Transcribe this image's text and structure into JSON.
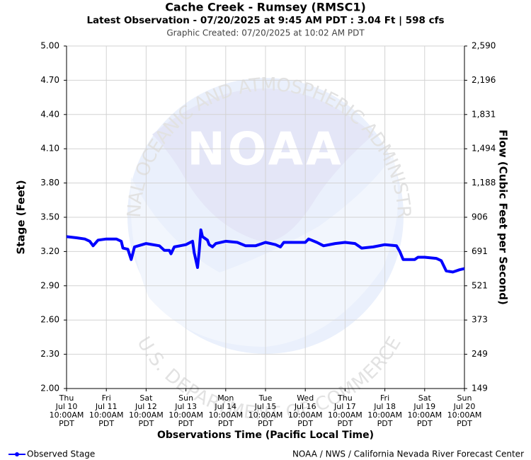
{
  "chart_data": {
    "type": "line",
    "title": "Cache Creek - Rumsey (RMSC1)",
    "subtitle": "Latest Observation - 07/20/2025 at 9:45 AM PDT : 3.04 Ft | 598 cfs",
    "created": "Graphic Created: 07/20/2025 at 10:02 AM PDT",
    "xlabel": "Observations Time (Pacific Local Time)",
    "ylabel": "Stage (Feet)",
    "y2label": "Flow (Cubic Feet per Second)",
    "credit": "NOAA / NWS / California Nevada River Forecast Center",
    "watermark": {
      "logo": "NOAA",
      "top": "NATIONAL OCEANIC AND ATMOSPHERIC ADMINISTRATION",
      "bottom": "U.S. DEPARTMENT OF COMMERCE"
    },
    "grid": true,
    "legend": "bottom-left",
    "xlim": [
      "Jul 10 10:00AM",
      "Jul 20 10:00AM"
    ],
    "xticks": [
      {
        "value": "Jul 10 10:00AM",
        "label": [
          "Thu",
          "Jul 10",
          "10:00AM",
          "PDT"
        ]
      },
      {
        "value": "Jul 11 10:00AM",
        "label": [
          "Fri",
          "Jul 11",
          "10:00AM",
          "PDT"
        ]
      },
      {
        "value": "Jul 12 10:00AM",
        "label": [
          "Sat",
          "Jul 12",
          "10:00AM",
          "PDT"
        ]
      },
      {
        "value": "Jul 13 10:00AM",
        "label": [
          "Sun",
          "Jul 13",
          "10:00AM",
          "PDT"
        ]
      },
      {
        "value": "Jul 14 10:00AM",
        "label": [
          "Mon",
          "Jul 14",
          "10:00AM",
          "PDT"
        ]
      },
      {
        "value": "Jul 15 10:00AM",
        "label": [
          "Tue",
          "Jul 15",
          "10:00AM",
          "PDT"
        ]
      },
      {
        "value": "Jul 16 10:00AM",
        "label": [
          "Wed",
          "Jul 16",
          "10:00AM",
          "PDT"
        ]
      },
      {
        "value": "Jul 17 10:00AM",
        "label": [
          "Thu",
          "Jul 17",
          "10:00AM",
          "PDT"
        ]
      },
      {
        "value": "Jul 18 10:00AM",
        "label": [
          "Fri",
          "Jul 18",
          "10:00AM",
          "PDT"
        ]
      },
      {
        "value": "Jul 19 10:00AM",
        "label": [
          "Sat",
          "Jul 19",
          "10:00AM",
          "PDT"
        ]
      },
      {
        "value": "Jul 20 10:00AM",
        "label": [
          "Sun",
          "Jul 20",
          "10:00AM",
          "PDT"
        ]
      }
    ],
    "ylim": [
      2.0,
      5.0
    ],
    "yticks": [
      {
        "value": 2.0,
        "label": "2.00"
      },
      {
        "value": 2.3,
        "label": "2.30"
      },
      {
        "value": 2.6,
        "label": "2.60"
      },
      {
        "value": 2.9,
        "label": "2.90"
      },
      {
        "value": 3.2,
        "label": "3.20"
      },
      {
        "value": 3.5,
        "label": "3.50"
      },
      {
        "value": 3.8,
        "label": "3.80"
      },
      {
        "value": 4.1,
        "label": "4.10"
      },
      {
        "value": 4.4,
        "label": "4.40"
      },
      {
        "value": 4.7,
        "label": "4.70"
      },
      {
        "value": 5.0,
        "label": "5.00"
      }
    ],
    "y2lim": [
      149,
      2590
    ],
    "y2ticks": [
      149,
      249,
      373,
      521,
      691,
      906,
      {
        "value": 1188,
        "label": "1,188"
      },
      {
        "value": 1494,
        "label": "1,494"
      },
      {
        "value": 1831,
        "label": "1,831"
      },
      {
        "value": 2196,
        "label": "2,196"
      },
      {
        "value": 2590,
        "label": "2,590"
      }
    ],
    "x": [
      "Jul 10 10:00AM",
      "Jul 10 4:00PM",
      "Jul 10 9:00PM",
      "Jul 11 12:00AM",
      "Jul 11 2:00AM",
      "Jul 11 5:00AM",
      "Jul 11 10:00AM",
      "Jul 11 4:00PM",
      "Jul 11 7:00PM",
      "Jul 11 8:00PM",
      "Jul 11 11:00PM",
      "Jul 12 1:00AM",
      "Jul 12 3:00AM",
      "Jul 12 10:00AM",
      "Jul 12 6:00PM",
      "Jul 12 9:00PM",
      "Jul 13 12:00AM",
      "Jul 13 1:00AM",
      "Jul 13 3:00AM",
      "Jul 13 10:00AM",
      "Jul 13 2:00PM",
      "Jul 13 3:00PM",
      "Jul 13 5:00PM",
      "Jul 13 6:00PM",
      "Jul 13 7:00PM",
      "Jul 13 8:00PM",
      "Jul 13 11:00PM",
      "Jul 14 12:00AM",
      "Jul 14 2:00AM",
      "Jul 14 4:00AM",
      "Jul 14 10:00AM",
      "Jul 14 5:00PM",
      "Jul 14 10:00PM",
      "Jul 15 4:00AM",
      "Jul 15 10:00AM",
      "Jul 15 4:00PM",
      "Jul 15 7:00PM",
      "Jul 15 9:00PM",
      "Jul 16 10:00AM",
      "Jul 16 12:00PM",
      "Jul 16 5:00PM",
      "Jul 16 9:00PM",
      "Jul 17 4:00AM",
      "Jul 17 10:00AM",
      "Jul 17 4:00PM",
      "Jul 17 8:00PM",
      "Jul 18 3:00AM",
      "Jul 18 10:00AM",
      "Jul 18 5:00PM",
      "Jul 18 7:00PM",
      "Jul 18 9:00PM",
      "Jul 19 4:00AM",
      "Jul 19 6:00AM",
      "Jul 19 10:00AM",
      "Jul 19 5:00PM",
      "Jul 19 8:00PM",
      "Jul 19 11:00PM",
      "Jul 20 3:00AM",
      "Jul 20 7:00AM",
      "Jul 20 10:00AM"
    ],
    "series": [
      {
        "name": "Observed Stage",
        "color": "#0000ff",
        "values": [
          3.33,
          3.32,
          3.31,
          3.29,
          3.25,
          3.3,
          3.31,
          3.31,
          3.29,
          3.23,
          3.22,
          3.13,
          3.24,
          3.27,
          3.25,
          3.21,
          3.21,
          3.18,
          3.24,
          3.26,
          3.29,
          3.19,
          3.06,
          3.2,
          3.39,
          3.33,
          3.3,
          3.26,
          3.24,
          3.27,
          3.29,
          3.28,
          3.25,
          3.25,
          3.28,
          3.26,
          3.24,
          3.28,
          3.28,
          3.31,
          3.28,
          3.25,
          3.27,
          3.28,
          3.27,
          3.23,
          3.24,
          3.26,
          3.25,
          3.2,
          3.13,
          3.13,
          3.15,
          3.15,
          3.14,
          3.12,
          3.03,
          3.02,
          3.04,
          3.05
        ]
      }
    ]
  }
}
